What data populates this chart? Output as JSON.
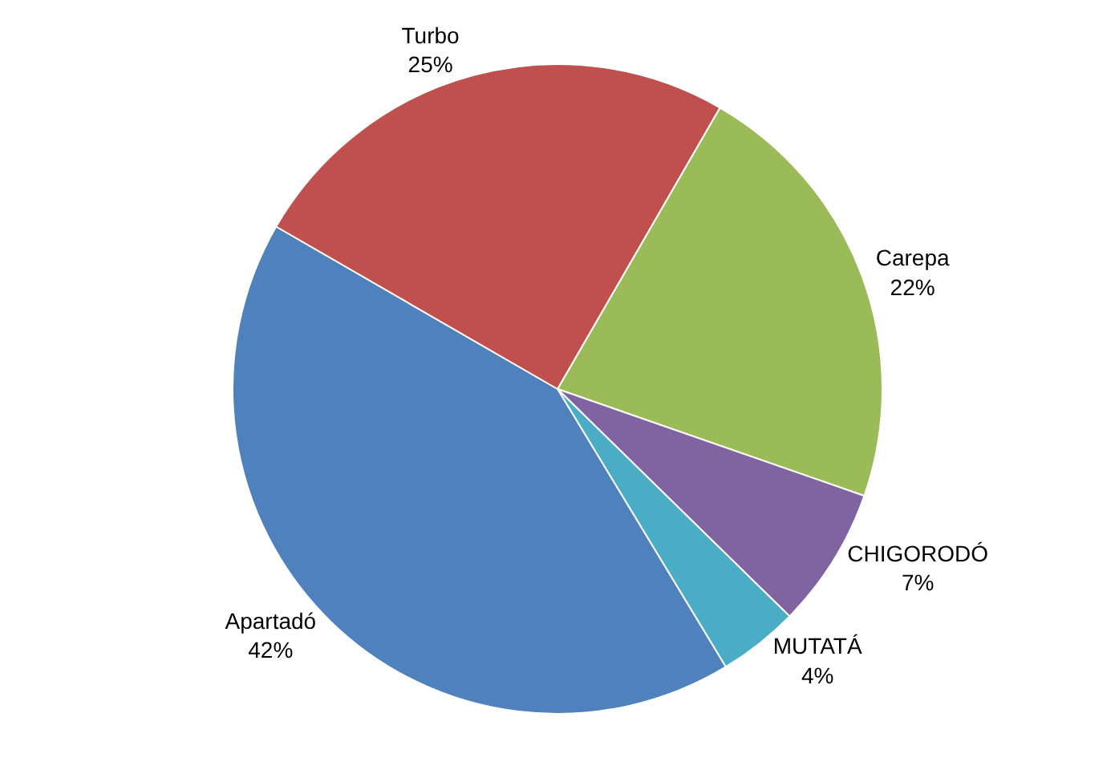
{
  "chart_data": {
    "type": "pie",
    "categories": [
      "Carepa",
      "CHIGORODÓ",
      "MUTATÁ",
      "Apartadó",
      "Turbo"
    ],
    "values": [
      22,
      7,
      4,
      42,
      25
    ],
    "value_labels": [
      "22%",
      "7%",
      "4%",
      "42%",
      "25%"
    ],
    "colors": [
      "#9bbb59",
      "#8064a2",
      "#4bacc6",
      "#4f81bd",
      "#c0504d"
    ],
    "legend": false
  }
}
